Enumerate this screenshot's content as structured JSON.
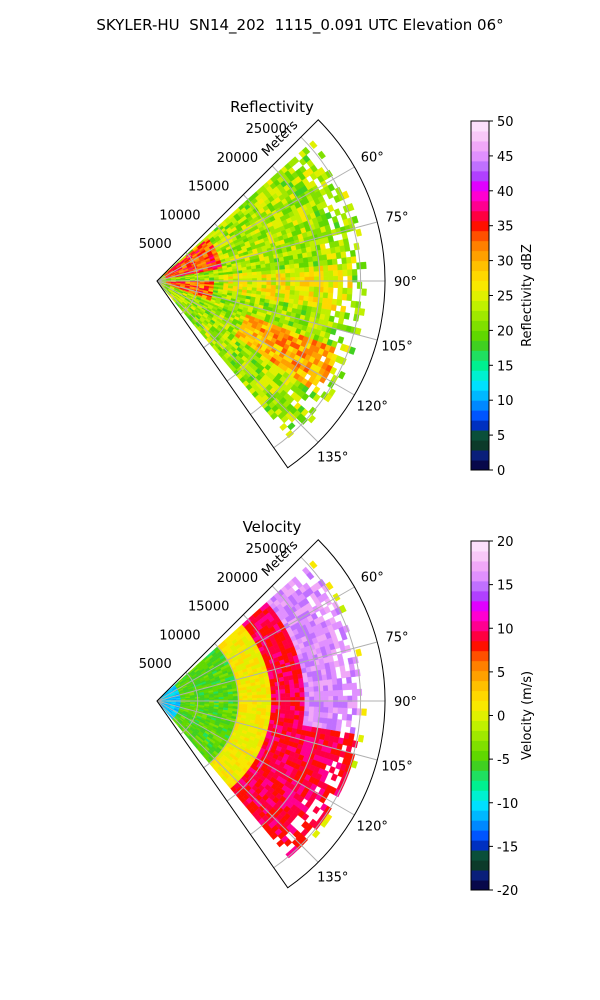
{
  "figure": {
    "title": "SKYLER-HU  SN14_202  1115_0.091 UTC Elevation 06°"
  },
  "panels": [
    {
      "title": "Reflectivity",
      "radial_label": "Meters",
      "colorbar_label": "Reflectivity dBZ"
    },
    {
      "title": "Velocity",
      "radial_label": "Meters",
      "colorbar_label": "Velocity (m/s)"
    }
  ],
  "chart_data": [
    {
      "type": "heatmap",
      "projection": "polar-sector",
      "title": "Reflectivity",
      "theta_range_deg": [
        45,
        145
      ],
      "theta_ticks": [
        "60°",
        "75°",
        "90°",
        "105°",
        "120°",
        "135°"
      ],
      "theta_tick_values": [
        60,
        75,
        90,
        105,
        120,
        135
      ],
      "r_range": [
        0,
        28000
      ],
      "r_ticks": [
        5000,
        10000,
        15000,
        20000,
        25000
      ],
      "r_tick_labels": [
        "5000",
        "10000",
        "15000",
        "20000",
        "25000"
      ],
      "r_label": "Meters",
      "grid": true,
      "colorbar": {
        "label": "Reflectivity dBZ",
        "range": [
          0,
          50
        ],
        "ticks": [
          0,
          5,
          10,
          15,
          20,
          25,
          30,
          35,
          40,
          45,
          50
        ],
        "tick_labels": [
          "0",
          "5",
          "10",
          "15",
          "20",
          "25",
          "30",
          "35",
          "40",
          "45",
          "50"
        ],
        "colors": [
          "#08084a",
          "#0a1f7a",
          "#0c3a2a",
          "#0a4f3a",
          "#0030c0",
          "#0055ff",
          "#0088ff",
          "#00b8ff",
          "#00e0ff",
          "#00f0d0",
          "#00f090",
          "#20e060",
          "#40d020",
          "#60d800",
          "#80e000",
          "#a0e800",
          "#c0f000",
          "#e0f000",
          "#f8e800",
          "#ffd800",
          "#ffc000",
          "#ffa000",
          "#ff8000",
          "#ff5000",
          "#ff1000",
          "#ff0040",
          "#ff0090",
          "#ff00d0",
          "#e000ff",
          "#b040ff",
          "#c070ff",
          "#e090ff",
          "#f0a8f8",
          "#f8c8f8",
          "#fce0fc"
        ]
      },
      "field_description": [
        {
          "theta_deg": [
            50,
            80
          ],
          "r": [
            1000,
            8000
          ],
          "value": 34
        },
        {
          "theta_deg": [
            90,
            110
          ],
          "r": [
            1000,
            7000
          ],
          "value": 33
        },
        {
          "theta_deg": [
            55,
            80
          ],
          "r": [
            8000,
            20000
          ],
          "value": 23
        },
        {
          "theta_deg": [
            85,
            100
          ],
          "r": [
            8000,
            24000
          ],
          "value": 26
        },
        {
          "theta_deg": [
            110,
            125
          ],
          "r": [
            12000,
            24000
          ],
          "value": 30
        },
        {
          "theta_deg": [
            125,
            140
          ],
          "r": [
            15000,
            25000
          ],
          "value": 22
        }
      ]
    },
    {
      "type": "heatmap",
      "projection": "polar-sector",
      "title": "Velocity",
      "theta_range_deg": [
        45,
        145
      ],
      "theta_ticks": [
        "60°",
        "75°",
        "90°",
        "105°",
        "120°",
        "135°"
      ],
      "theta_tick_values": [
        60,
        75,
        90,
        105,
        120,
        135
      ],
      "r_range": [
        0,
        28000
      ],
      "r_ticks": [
        5000,
        10000,
        15000,
        20000,
        25000
      ],
      "r_tick_labels": [
        "5000",
        "10000",
        "15000",
        "20000",
        "25000"
      ],
      "r_label": "Meters",
      "grid": true,
      "colorbar": {
        "label": "Velocity (m/s)",
        "range": [
          -20,
          20
        ],
        "ticks": [
          -20,
          -15,
          -10,
          -5,
          0,
          5,
          10,
          15,
          20
        ],
        "tick_labels": [
          "-20",
          "-15",
          "-10",
          "-5",
          "0",
          "5",
          "10",
          "15",
          "20"
        ],
        "colors": [
          "#08084a",
          "#0a1f7a",
          "#0c3a2a",
          "#0a4f3a",
          "#0030c0",
          "#0055ff",
          "#0088ff",
          "#00b8ff",
          "#00e0ff",
          "#00f0d0",
          "#00f090",
          "#20e060",
          "#40d020",
          "#60d800",
          "#80e000",
          "#a0e800",
          "#c0f000",
          "#e0f000",
          "#f8e800",
          "#ffd800",
          "#ffc000",
          "#ffa000",
          "#ff8000",
          "#ff5000",
          "#ff1000",
          "#ff0040",
          "#ff0090",
          "#ff00d0",
          "#e000ff",
          "#b040ff",
          "#c070ff",
          "#e090ff",
          "#f0a8f8",
          "#f8c8f8",
          "#fce0fc"
        ]
      },
      "field_description": [
        {
          "theta_deg": [
            45,
            140
          ],
          "r": [
            0,
            3000
          ],
          "value": -11
        },
        {
          "theta_deg": [
            45,
            140
          ],
          "r": [
            3000,
            10000
          ],
          "value": -5
        },
        {
          "theta_deg": [
            45,
            140
          ],
          "r": [
            10000,
            14000
          ],
          "value": 1
        },
        {
          "theta_deg": [
            45,
            140
          ],
          "r": [
            14000,
            18000
          ],
          "value": 9
        },
        {
          "theta_deg": [
            45,
            100
          ],
          "r": [
            18000,
            25000
          ],
          "value": 16
        },
        {
          "theta_deg": [
            100,
            140
          ],
          "r": [
            18000,
            25000
          ],
          "value": 9
        }
      ]
    }
  ]
}
